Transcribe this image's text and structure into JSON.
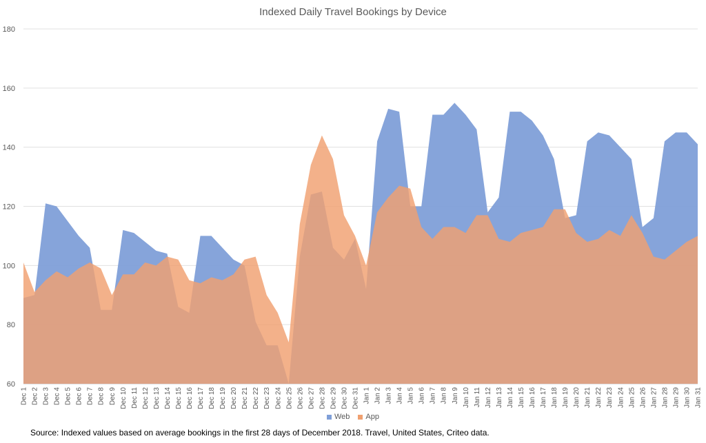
{
  "chart_data": {
    "type": "area",
    "title": "Indexed Daily Travel Bookings by Device",
    "xlabel": "",
    "ylabel": "",
    "ylim": [
      60,
      180
    ],
    "yticks": [
      60,
      80,
      100,
      120,
      140,
      160,
      180
    ],
    "grid": true,
    "legend_position": "bottom",
    "categories": [
      "Dec 1",
      "Dec 2",
      "Dec 3",
      "Dec 4",
      "Dec 5",
      "Dec 6",
      "Dec 7",
      "Dec 8",
      "Dec 9",
      "Dec 10",
      "Dec 11",
      "Dec 12",
      "Dec 13",
      "Dec 14",
      "Dec 15",
      "Dec 16",
      "Dec 17",
      "Dec 18",
      "Dec 19",
      "Dec 20",
      "Dec 21",
      "Dec 22",
      "Dec 23",
      "Dec 24",
      "Dec 25",
      "Dec 26",
      "Dec 27",
      "Dec 28",
      "Dec 29",
      "Dec 30",
      "Dec 31",
      "Jan 1",
      "Jan 2",
      "Jan 3",
      "Jan 4",
      "Jan 5",
      "Jan 6",
      "Jan 7",
      "Jan 8",
      "Jan 9",
      "Jan 10",
      "Jan 11",
      "Jan 12",
      "Jan 13",
      "Jan 14",
      "Jan 15",
      "Jan 16",
      "Jan 17",
      "Jan 18",
      "Jan 19",
      "Jan 20",
      "Jan 21",
      "Jan 22",
      "Jan 23",
      "Jan 24",
      "Jan 25",
      "Jan 26",
      "Jan 27",
      "Jan 28",
      "Jan 29",
      "Jan 30",
      "Jan 31"
    ],
    "series": [
      {
        "name": "Web",
        "color": "#7f9fd8",
        "values": [
          89,
          90,
          121,
          120,
          115,
          110,
          106,
          85,
          85,
          112,
          111,
          108,
          105,
          104,
          86,
          84,
          110,
          110,
          106,
          102,
          100,
          81,
          73,
          73,
          60,
          103,
          124,
          125,
          106,
          102,
          109,
          92,
          142,
          153,
          152,
          120,
          120,
          151,
          151,
          155,
          151,
          146,
          118,
          123,
          152,
          152,
          149,
          144,
          136,
          116,
          117,
          142,
          145,
          144,
          140,
          136,
          113,
          116,
          142,
          145,
          145,
          141
        ]
      },
      {
        "name": "App",
        "color": "#f0a070",
        "values": [
          101,
          91,
          95,
          98,
          96,
          99,
          101,
          99,
          90,
          97,
          97,
          101,
          100,
          103,
          102,
          95,
          94,
          96,
          95,
          97,
          102,
          103,
          90,
          84,
          74,
          114,
          134,
          144,
          136,
          117,
          110,
          100,
          118,
          123,
          127,
          126,
          113,
          109,
          113,
          113,
          111,
          117,
          117,
          109,
          108,
          111,
          112,
          113,
          119,
          119,
          111,
          108,
          109,
          112,
          110,
          117,
          111,
          103,
          102,
          105,
          108,
          110
        ]
      }
    ]
  },
  "source_note": "Source: Indexed values based on average bookings in the first 28 days of December 2018.  Travel, United States, Criteo data."
}
